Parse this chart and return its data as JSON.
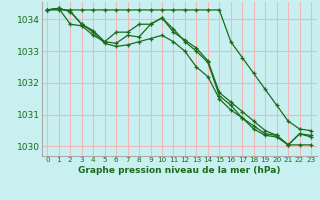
{
  "title": "Graphe pression niveau de la mer (hPa)",
  "background_color": "#c8f0f0",
  "grid_color": "#f0b8b8",
  "line_color": "#1a6b1a",
  "border_color": "#aaaaaa",
  "xlim": [
    -0.5,
    23.5
  ],
  "ylim": [
    1029.7,
    1034.55
  ],
  "yticks": [
    1030,
    1031,
    1032,
    1033,
    1034
  ],
  "xticks": [
    0,
    1,
    2,
    3,
    4,
    5,
    6,
    7,
    8,
    9,
    10,
    11,
    12,
    13,
    14,
    15,
    16,
    17,
    18,
    19,
    20,
    21,
    22,
    23
  ],
  "series": [
    {
      "x": [
        0,
        1,
        2,
        3,
        4,
        5,
        6,
        7,
        8,
        9,
        10,
        11,
        12,
        13,
        14,
        15,
        16,
        17,
        18,
        19,
        20,
        21,
        22,
        23
      ],
      "y": [
        1034.3,
        1034.35,
        1034.25,
        1033.85,
        1033.65,
        1033.3,
        1033.6,
        1033.6,
        1033.85,
        1033.85,
        1034.05,
        1033.6,
        1033.35,
        1033.1,
        1032.7,
        1031.7,
        1031.4,
        1031.1,
        1030.8,
        1030.5,
        1030.35,
        1030.05,
        1030.4,
        1030.3
      ]
    },
    {
      "x": [
        0,
        1,
        2,
        3,
        4,
        5,
        6,
        7,
        8,
        9,
        10,
        11,
        12,
        13,
        14,
        15,
        16,
        17,
        18,
        19,
        20,
        21,
        22,
        23
      ],
      "y": [
        1034.3,
        1034.35,
        1033.85,
        1033.8,
        1033.5,
        1033.3,
        1033.25,
        1033.5,
        1033.45,
        1033.85,
        1034.05,
        1033.7,
        1033.3,
        1033.0,
        1032.65,
        1031.6,
        1031.3,
        1030.9,
        1030.55,
        1030.35,
        1030.3,
        1030.05,
        1030.05,
        1030.05
      ]
    },
    {
      "x": [
        0,
        1,
        2,
        3,
        4,
        5,
        6,
        7,
        8,
        9,
        10,
        11,
        12,
        13,
        14,
        15,
        16,
        17,
        18,
        19,
        20,
        21,
        22,
        23
      ],
      "y": [
        1034.3,
        1034.35,
        1034.25,
        1033.85,
        1033.6,
        1033.25,
        1033.15,
        1033.2,
        1033.3,
        1033.4,
        1033.5,
        1033.3,
        1033.0,
        1032.5,
        1032.2,
        1031.5,
        1031.15,
        1030.9,
        1030.65,
        1030.4,
        1030.35,
        1030.05,
        1030.4,
        1030.35
      ]
    },
    {
      "x": [
        0,
        1,
        2,
        3,
        4,
        5,
        6,
        7,
        8,
        9,
        10,
        11,
        12,
        13,
        14,
        15,
        16,
        17,
        18,
        19,
        20,
        21,
        22,
        23
      ],
      "y": [
        1034.3,
        1034.3,
        1034.3,
        1034.3,
        1034.3,
        1034.3,
        1034.3,
        1034.3,
        1034.3,
        1034.3,
        1034.3,
        1034.3,
        1034.3,
        1034.3,
        1034.3,
        1034.3,
        1033.3,
        1032.8,
        1032.3,
        1031.8,
        1031.3,
        1030.8,
        1030.55,
        1030.5
      ]
    }
  ]
}
